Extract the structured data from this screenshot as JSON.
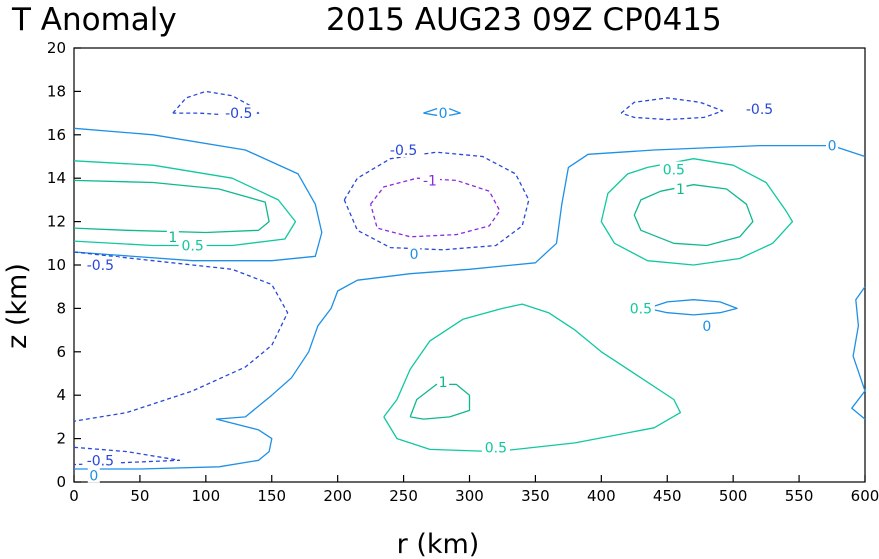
{
  "chart_data": {
    "type": "contour",
    "title_left": "T Anomaly",
    "title_right": "2015 AUG23 09Z   CP0415",
    "xlabel": "r (km)",
    "ylabel": "z (km)",
    "xlim": [
      0,
      600
    ],
    "ylim": [
      0,
      20
    ],
    "xticks": [
      "0",
      "50",
      "100",
      "150",
      "200",
      "250",
      "300",
      "350",
      "400",
      "450",
      "500",
      "550",
      "600"
    ],
    "yticks": [
      "0",
      "2",
      "4",
      "6",
      "8",
      "10",
      "12",
      "14",
      "16",
      "18",
      "20"
    ],
    "grid": false,
    "colors": {
      "zero": "#1e90e6",
      "pos05": "#10c8a0",
      "pos1": "#10b890",
      "neg05": "#2848d8",
      "neg1": "#8a2be2"
    },
    "contour_levels": [
      {
        "level": "0",
        "style": "solid",
        "color_key": "zero",
        "label_positions": [
          [
            258,
            10.5
          ],
          [
            280,
            17.0
          ],
          [
            575,
            15.5
          ],
          [
            480,
            7.2
          ],
          [
            15,
            0.3
          ]
        ],
        "polylines": [
          [
            [
              0,
              16.3
            ],
            [
              60,
              16.0
            ],
            [
              130,
              15.3
            ],
            [
              170,
              14.2
            ],
            [
              183,
              12.8
            ],
            [
              188,
              11.5
            ],
            [
              183,
              10.4
            ],
            [
              150,
              10.2
            ],
            [
              90,
              10.2
            ],
            [
              0,
              10.6
            ]
          ],
          [
            [
              600,
              15.0
            ],
            [
              575,
              15.5
            ],
            [
              520,
              15.5
            ],
            [
              440,
              15.3
            ],
            [
              390,
              15.1
            ],
            [
              375,
              14.5
            ],
            [
              370,
              12.8
            ],
            [
              366,
              11.0
            ],
            [
              350,
              10.1
            ],
            [
              300,
              9.8
            ],
            [
              255,
              9.6
            ],
            [
              215,
              9.3
            ],
            [
              200,
              8.8
            ],
            [
              195,
              8.0
            ],
            [
              185,
              7.2
            ],
            [
              178,
              6.0
            ],
            [
              165,
              4.8
            ],
            [
              150,
              4.0
            ],
            [
              130,
              3.0
            ],
            [
              108,
              2.9
            ],
            [
              140,
              2.4
            ],
            [
              150,
              2.0
            ],
            [
              148,
              1.4
            ],
            [
              140,
              1.0
            ],
            [
              110,
              0.7
            ],
            [
              50,
              0.6
            ],
            [
              0,
              0.6
            ]
          ],
          [
            [
              600,
              9.0
            ],
            [
              593,
              8.4
            ],
            [
              595,
              7.2
            ],
            [
              591,
              5.8
            ],
            [
              600,
              4.2
            ],
            [
              590,
              3.4
            ],
            [
              600,
              2.9
            ]
          ],
          [
            [
              265,
              17.0
            ],
            [
              275,
              17.2
            ],
            [
              285,
              17.2
            ],
            [
              293,
              17.0
            ],
            [
              285,
              16.9
            ],
            [
              275,
              16.9
            ],
            [
              265,
              17.0
            ]
          ],
          [
            [
              435,
              8.0
            ],
            [
              450,
              8.3
            ],
            [
              470,
              8.4
            ],
            [
              490,
              8.3
            ],
            [
              503,
              8.0
            ],
            [
              490,
              7.8
            ],
            [
              470,
              7.7
            ],
            [
              450,
              7.8
            ],
            [
              435,
              8.0
            ]
          ]
        ]
      },
      {
        "level": "0.5",
        "style": "solid",
        "color_key": "pos05",
        "label_positions": [
          [
            90,
            10.9
          ],
          [
            430,
            8.0
          ],
          [
            455,
            14.4
          ],
          [
            320,
            1.6
          ]
        ],
        "polylines": [
          [
            [
              0,
              14.8
            ],
            [
              60,
              14.6
            ],
            [
              120,
              14.0
            ],
            [
              155,
              13.0
            ],
            [
              168,
              12.0
            ],
            [
              160,
              11.2
            ],
            [
              120,
              10.9
            ],
            [
              60,
              10.9
            ],
            [
              0,
              11.1
            ]
          ],
          [
            [
              435,
              14.5
            ],
            [
              470,
              14.9
            ],
            [
              500,
              14.6
            ],
            [
              525,
              13.8
            ],
            [
              540,
              12.5
            ],
            [
              545,
              12.0
            ],
            [
              530,
              11.0
            ],
            [
              505,
              10.3
            ],
            [
              470,
              10.0
            ],
            [
              435,
              10.2
            ],
            [
              410,
              11.0
            ],
            [
              400,
              12.0
            ],
            [
              405,
              13.3
            ],
            [
              420,
              14.2
            ],
            [
              435,
              14.5
            ]
          ],
          [
            [
              235,
              3.0
            ],
            [
              245,
              3.8
            ],
            [
              255,
              5.2
            ],
            [
              270,
              6.5
            ],
            [
              295,
              7.5
            ],
            [
              325,
              8.0
            ],
            [
              340,
              8.2
            ],
            [
              360,
              7.8
            ],
            [
              380,
              7.0
            ],
            [
              400,
              6.0
            ],
            [
              430,
              4.8
            ],
            [
              455,
              3.8
            ],
            [
              460,
              3.2
            ],
            [
              440,
              2.5
            ],
            [
              380,
              1.8
            ],
            [
              320,
              1.4
            ],
            [
              270,
              1.5
            ],
            [
              245,
              2.0
            ],
            [
              235,
              3.0
            ]
          ]
        ]
      },
      {
        "level": "1",
        "style": "solid",
        "color_key": "pos1",
        "label_positions": [
          [
            75,
            11.3
          ],
          [
            460,
            13.5
          ],
          [
            280,
            4.6
          ]
        ],
        "polylines": [
          [
            [
              0,
              13.9
            ],
            [
              60,
              13.8
            ],
            [
              110,
              13.5
            ],
            [
              145,
              12.9
            ],
            [
              148,
              12.0
            ],
            [
              140,
              11.6
            ],
            [
              100,
              11.5
            ],
            [
              40,
              11.6
            ],
            [
              0,
              11.7
            ]
          ],
          [
            [
              445,
              13.4
            ],
            [
              470,
              13.7
            ],
            [
              495,
              13.5
            ],
            [
              510,
              12.8
            ],
            [
              515,
              12.0
            ],
            [
              505,
              11.3
            ],
            [
              480,
              10.9
            ],
            [
              455,
              11.0
            ],
            [
              430,
              11.6
            ],
            [
              425,
              12.3
            ],
            [
              430,
              13.0
            ],
            [
              445,
              13.4
            ]
          ],
          [
            [
              255,
              3.0
            ],
            [
              260,
              3.8
            ],
            [
              275,
              4.5
            ],
            [
              290,
              4.5
            ],
            [
              300,
              4.0
            ],
            [
              300,
              3.3
            ],
            [
              285,
              3.0
            ],
            [
              265,
              2.9
            ],
            [
              255,
              3.0
            ]
          ]
        ]
      },
      {
        "level": "-0.5",
        "style": "dashed",
        "color_key": "neg05",
        "label_positions": [
          [
            125,
            17.0
          ],
          [
            250,
            15.3
          ],
          [
            520,
            17.2
          ],
          [
            20,
            10.0
          ],
          [
            20,
            1.0
          ]
        ],
        "polylines": [
          [
            [
              75,
              17.0
            ],
            [
              85,
              17.7
            ],
            [
              100,
              18.0
            ],
            [
              120,
              17.8
            ],
            [
              135,
              17.3
            ],
            [
              140,
              17.0
            ],
            [
              120,
              16.9
            ],
            [
              95,
              17.0
            ],
            [
              75,
              17.0
            ]
          ],
          [
            [
              205,
              13.0
            ],
            [
              215,
              14.0
            ],
            [
              240,
              14.9
            ],
            [
              275,
              15.2
            ],
            [
              310,
              15.0
            ],
            [
              335,
              14.2
            ],
            [
              345,
              13.0
            ],
            [
              340,
              11.8
            ],
            [
              320,
              10.9
            ],
            [
              280,
              10.7
            ],
            [
              240,
              10.8
            ],
            [
              215,
              11.6
            ],
            [
              205,
              13.0
            ]
          ],
          [
            [
              415,
              17.0
            ],
            [
              425,
              17.5
            ],
            [
              450,
              17.7
            ],
            [
              475,
              17.5
            ],
            [
              492,
              17.1
            ],
            [
              478,
              16.8
            ],
            [
              450,
              16.7
            ],
            [
              425,
              16.8
            ],
            [
              415,
              17.0
            ]
          ],
          [
            [
              0,
              10.6
            ],
            [
              60,
              10.2
            ],
            [
              120,
              9.8
            ],
            [
              150,
              9.1
            ],
            [
              162,
              7.8
            ],
            [
              150,
              6.3
            ],
            [
              130,
              5.3
            ],
            [
              90,
              4.2
            ],
            [
              40,
              3.2
            ],
            [
              0,
              2.8
            ]
          ],
          [
            [
              0,
              1.6
            ],
            [
              40,
              1.4
            ],
            [
              80,
              1.0
            ],
            [
              40,
              0.9
            ],
            [
              0,
              0.8
            ]
          ]
        ]
      },
      {
        "level": "-1",
        "style": "dashed",
        "color_key": "neg1",
        "label_positions": [
          [
            270,
            13.9
          ]
        ],
        "polylines": [
          [
            [
              225,
              12.8
            ],
            [
              235,
              13.6
            ],
            [
              260,
              14.0
            ],
            [
              290,
              13.9
            ],
            [
              315,
              13.4
            ],
            [
              323,
              12.5
            ],
            [
              315,
              11.8
            ],
            [
              290,
              11.4
            ],
            [
              255,
              11.3
            ],
            [
              230,
              11.7
            ],
            [
              225,
              12.8
            ]
          ]
        ]
      }
    ]
  }
}
